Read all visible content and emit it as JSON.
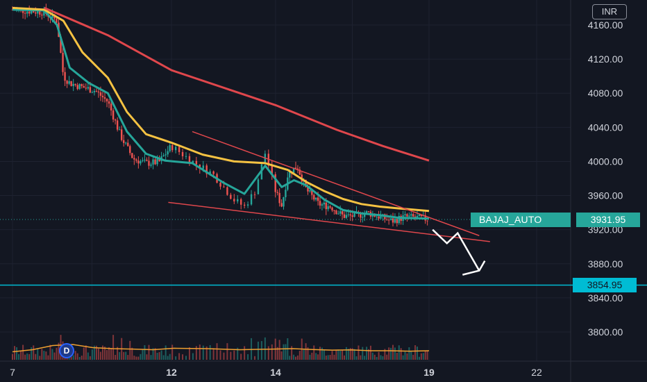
{
  "currency": "INR",
  "symbol_label": "BAJAJ_AUTO",
  "symbol_price": "3931.95",
  "level_price": "3854.95",
  "dividend_marker": "D",
  "colors": {
    "background": "#131722",
    "grid": "#1e2230",
    "up": "#26a69a",
    "down": "#ef5350",
    "ma_fast": "#26a69a",
    "ma_mid": "#f5c242",
    "ma_slow": "#e0474c",
    "trendline": "#e0474c",
    "level": "#00bcd4",
    "arrow": "#ffffff",
    "volume_ma": "#f0a030"
  },
  "chart_data": {
    "type": "candlestick",
    "title": "",
    "y_ticks": [
      "4160.00",
      "4120.00",
      "4080.00",
      "4040.00",
      "4000.00",
      "3960.00",
      "3920.00",
      "3880.00",
      "3840.00",
      "3800.00"
    ],
    "y_tick_values": [
      4160,
      4120,
      4080,
      4040,
      4000,
      3960,
      3920,
      3880,
      3840,
      3800
    ],
    "x_ticks": [
      "7",
      "12",
      "14",
      "19",
      "22"
    ],
    "ylim": [
      3775,
      4185
    ],
    "price_path": [
      {
        "day": 7.0,
        "price": 4178
      },
      {
        "day": 8.0,
        "price": 4175
      },
      {
        "day": 8.4,
        "price": 4165
      },
      {
        "day": 8.6,
        "price": 4100
      },
      {
        "day": 8.8,
        "price": 4092
      },
      {
        "day": 9.2,
        "price": 4087
      },
      {
        "day": 9.6,
        "price": 4083
      },
      {
        "day": 10.0,
        "price": 4070
      },
      {
        "day": 10.4,
        "price": 4030
      },
      {
        "day": 10.8,
        "price": 4003
      },
      {
        "day": 11.2,
        "price": 3998
      },
      {
        "day": 11.6,
        "price": 3999
      },
      {
        "day": 12.0,
        "price": 4018
      },
      {
        "day": 12.4,
        "price": 4000
      },
      {
        "day": 12.8,
        "price": 3985
      },
      {
        "day": 13.2,
        "price": 3955
      },
      {
        "day": 13.4,
        "price": 3947
      },
      {
        "day": 13.6,
        "price": 3965
      },
      {
        "day": 13.8,
        "price": 4010
      },
      {
        "day": 14.0,
        "price": 3965
      },
      {
        "day": 14.2,
        "price": 3948
      },
      {
        "day": 14.4,
        "price": 3985
      },
      {
        "day": 14.7,
        "price": 3995
      },
      {
        "day": 15.0,
        "price": 3967
      },
      {
        "day": 15.4,
        "price": 3950
      },
      {
        "day": 15.8,
        "price": 3947
      },
      {
        "day": 16.2,
        "price": 3936
      },
      {
        "day": 16.6,
        "price": 3936
      },
      {
        "day": 17.0,
        "price": 3940
      },
      {
        "day": 17.4,
        "price": 3935
      },
      {
        "day": 17.8,
        "price": 3930
      },
      {
        "day": 18.2,
        "price": 3935
      },
      {
        "day": 18.6,
        "price": 3934
      },
      {
        "day": 19.0,
        "price": 3932
      }
    ],
    "series": [
      {
        "name": "",
        "color": "#26a69a",
        "points": [
          {
            "day": 7.0,
            "price": 4178
          },
          {
            "day": 8.0,
            "price": 4177
          },
          {
            "day": 8.4,
            "price": 4160
          },
          {
            "day": 8.8,
            "price": 4110
          },
          {
            "day": 9.4,
            "price": 4092
          },
          {
            "day": 10.0,
            "price": 4080
          },
          {
            "day": 10.6,
            "price": 4035
          },
          {
            "day": 11.2,
            "price": 4009
          },
          {
            "day": 11.8,
            "price": 4001
          },
          {
            "day": 12.4,
            "price": 3998
          },
          {
            "day": 13.0,
            "price": 3975
          },
          {
            "day": 13.4,
            "price": 3962
          },
          {
            "day": 13.8,
            "price": 3995
          },
          {
            "day": 14.2,
            "price": 3970
          },
          {
            "day": 14.6,
            "price": 3978
          },
          {
            "day": 15.0,
            "price": 3972
          },
          {
            "day": 15.6,
            "price": 3955
          },
          {
            "day": 16.2,
            "price": 3943
          },
          {
            "day": 16.8,
            "price": 3939
          },
          {
            "day": 17.4,
            "price": 3937
          },
          {
            "day": 18.0,
            "price": 3934
          },
          {
            "day": 19.0,
            "price": 3933
          }
        ]
      },
      {
        "name": "",
        "color": "#f5c242",
        "points": [
          {
            "day": 7.0,
            "price": 4180
          },
          {
            "day": 8.0,
            "price": 4178
          },
          {
            "day": 8.6,
            "price": 4165
          },
          {
            "day": 9.2,
            "price": 4128
          },
          {
            "day": 10.0,
            "price": 4098
          },
          {
            "day": 10.6,
            "price": 4058
          },
          {
            "day": 11.2,
            "price": 4032
          },
          {
            "day": 12.0,
            "price": 4022
          },
          {
            "day": 12.6,
            "price": 4008
          },
          {
            "day": 13.2,
            "price": 4000
          },
          {
            "day": 13.8,
            "price": 3998
          },
          {
            "day": 14.4,
            "price": 3990
          },
          {
            "day": 15.0,
            "price": 3976
          },
          {
            "day": 15.6,
            "price": 3965
          },
          {
            "day": 16.2,
            "price": 3956
          },
          {
            "day": 16.8,
            "price": 3950
          },
          {
            "day": 17.4,
            "price": 3947
          },
          {
            "day": 18.0,
            "price": 3945
          },
          {
            "day": 19.0,
            "price": 3942
          }
        ]
      },
      {
        "name": "",
        "color": "#e0474c",
        "points": [
          {
            "day": 8.0,
            "price": 4180
          },
          {
            "day": 10.0,
            "price": 4148
          },
          {
            "day": 12.0,
            "price": 4107
          },
          {
            "day": 14.0,
            "price": 4066
          },
          {
            "day": 16.0,
            "price": 4037
          },
          {
            "day": 17.5,
            "price": 4018
          },
          {
            "day": 19.0,
            "price": 4001
          }
        ]
      }
    ],
    "drawings": {
      "trendlines": [
        {
          "from": {
            "day": 12.4,
            "price": 4035
          },
          "to": {
            "day": 20.4,
            "price": 3913
          }
        },
        {
          "from": {
            "day": 11.9,
            "price": 3952
          },
          "to": {
            "day": 20.7,
            "price": 3906
          }
        }
      ],
      "projection_arrow": [
        {
          "day": 19.1,
          "price": 3920
        },
        {
          "day": 19.5,
          "price": 3904
        },
        {
          "day": 19.8,
          "price": 3916
        },
        {
          "day": 20.4,
          "price": 3872
        }
      ],
      "horizontal_level": 3854.95,
      "last_price_line": 3931.95
    },
    "volume": {
      "ma_values": [
        0.25,
        0.35,
        0.55,
        0.6,
        0.45,
        0.4,
        0.38,
        0.35,
        0.42,
        0.4,
        0.35,
        0.38,
        0.4,
        0.36,
        0.33,
        0.34,
        0.3,
        0.3,
        0.28,
        0.3
      ]
    },
    "grid": true
  }
}
